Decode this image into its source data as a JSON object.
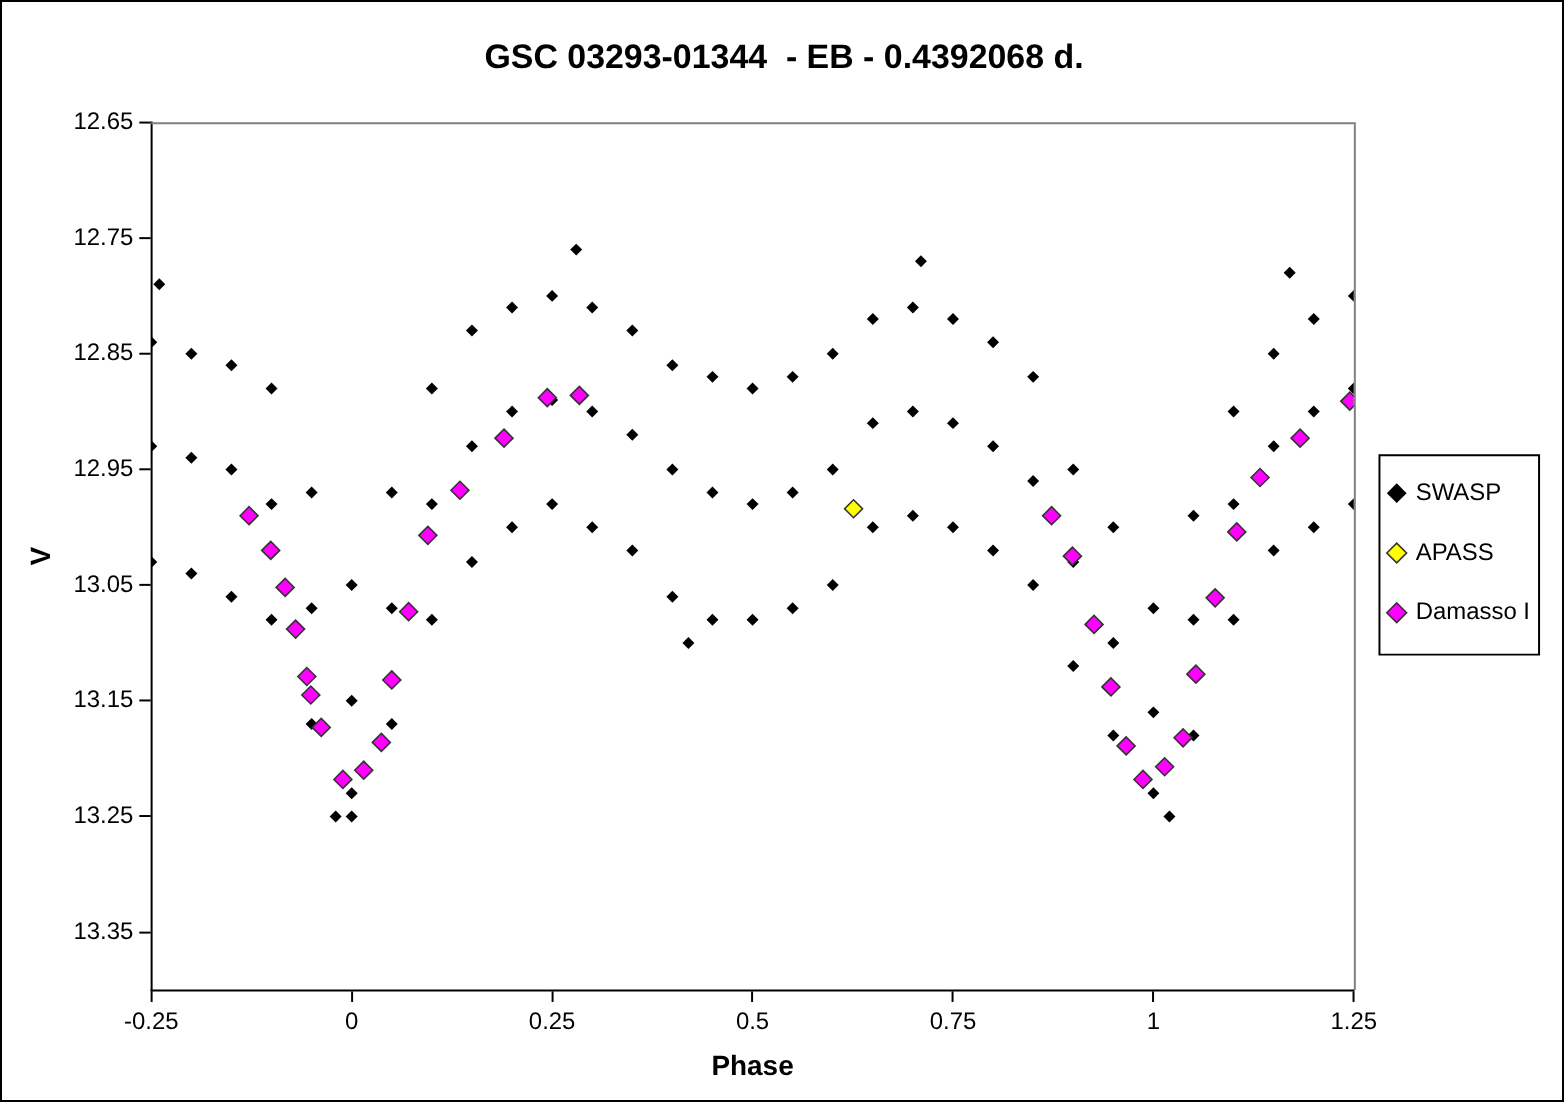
{
  "chart_data": {
    "type": "scatter",
    "title": "GSC 03293-01344  - EB - 0.4392068 d.",
    "xlabel": "Phase",
    "ylabel": "V",
    "xlim": [
      -0.25,
      1.25
    ],
    "xticks": [
      -0.25,
      0,
      0.25,
      0.5,
      0.75,
      1,
      1.25
    ],
    "ylim": [
      13.4,
      12.65
    ],
    "yticks": [
      12.65,
      12.75,
      12.85,
      12.95,
      13.05,
      13.15,
      13.25,
      13.35
    ],
    "grid": false,
    "legend": "right",
    "marker": "diamond",
    "series": [
      {
        "name": "SWASP",
        "color": "#000000",
        "x": [
          -0.25,
          -0.25,
          -0.25,
          -0.2,
          -0.2,
          -0.2,
          -0.15,
          -0.15,
          -0.15,
          -0.1,
          -0.1,
          -0.1,
          -0.05,
          -0.05,
          -0.05,
          0,
          0,
          0,
          0.05,
          0.05,
          0.05,
          0.1,
          0.1,
          0.1,
          0.15,
          0.15,
          0.15,
          0.2,
          0.2,
          0.2,
          0.25,
          0.25,
          0.25,
          0.3,
          0.3,
          0.3,
          0.35,
          0.35,
          0.35,
          0.4,
          0.4,
          0.4,
          0.45,
          0.45,
          0.45,
          0.5,
          0.5,
          0.5,
          0.55,
          0.55,
          0.55,
          0.6,
          0.6,
          0.6,
          0.65,
          0.65,
          0.65,
          0.7,
          0.7,
          0.7,
          0.75,
          0.75,
          0.75,
          0.8,
          0.8,
          0.8,
          0.85,
          0.85,
          0.85,
          0.9,
          0.9,
          0.9,
          0.95,
          0.95,
          0.95,
          1,
          1,
          1,
          1.05,
          1.05,
          1.05,
          1.1,
          1.1,
          1.1,
          1.15,
          1.15,
          1.15,
          1.2,
          1.2,
          1.2,
          1.25,
          1.25,
          1.25,
          -0.24,
          0.28,
          0.71,
          1.17,
          0,
          1.02,
          -0.02,
          0.42
        ],
        "values": [
          12.84,
          12.93,
          13.03,
          12.85,
          12.94,
          13.04,
          12.86,
          12.95,
          13.06,
          12.88,
          12.98,
          13.08,
          12.97,
          13.07,
          13.17,
          13.05,
          13.15,
          13.23,
          12.97,
          13.07,
          13.17,
          12.88,
          12.98,
          13.08,
          12.83,
          12.93,
          13.03,
          12.81,
          12.9,
          13.0,
          12.8,
          12.89,
          12.98,
          12.81,
          12.9,
          13.0,
          12.83,
          12.92,
          13.02,
          12.86,
          12.95,
          13.06,
          12.87,
          12.97,
          13.08,
          12.88,
          12.98,
          13.08,
          12.87,
          12.97,
          13.07,
          12.85,
          12.95,
          13.05,
          12.82,
          12.91,
          13.0,
          12.81,
          12.9,
          12.99,
          12.82,
          12.91,
          13.0,
          12.84,
          12.93,
          13.02,
          12.87,
          12.96,
          13.05,
          12.95,
          13.03,
          13.12,
          13.0,
          13.1,
          13.18,
          13.07,
          13.16,
          13.23,
          12.99,
          13.08,
          13.18,
          12.9,
          12.98,
          13.08,
          12.85,
          12.93,
          13.02,
          12.82,
          12.9,
          13.0,
          12.8,
          12.88,
          12.98,
          12.79,
          12.76,
          12.77,
          12.78,
          13.25,
          13.25,
          13.25,
          13.1
        ]
      },
      {
        "name": "APASS",
        "color": "#ffff00",
        "x": [
          0.626
        ],
        "values": [
          12.984
        ]
      },
      {
        "name": "Damasso I",
        "color": "#ff00ff",
        "x": [
          -0.128,
          -0.101,
          -0.083,
          -0.07,
          -0.056,
          -0.051,
          -0.038,
          -0.011,
          0.015,
          0.037,
          0.05,
          0.071,
          0.095,
          0.135,
          0.19,
          0.244,
          0.284,
          0.873,
          0.899,
          0.926,
          0.947,
          0.966,
          0.987,
          1.014,
          1.037,
          1.053,
          1.077,
          1.104,
          1.133,
          1.183,
          1.245
        ],
        "values": [
          12.99,
          13.02,
          13.052,
          13.088,
          13.129,
          13.145,
          13.173,
          13.218,
          13.21,
          13.186,
          13.132,
          13.073,
          13.007,
          12.968,
          12.923,
          12.888,
          12.886,
          12.99,
          13.025,
          13.084,
          13.138,
          13.189,
          13.218,
          13.207,
          13.182,
          13.127,
          13.061,
          13.004,
          12.957,
          12.923,
          12.891
        ]
      }
    ]
  }
}
